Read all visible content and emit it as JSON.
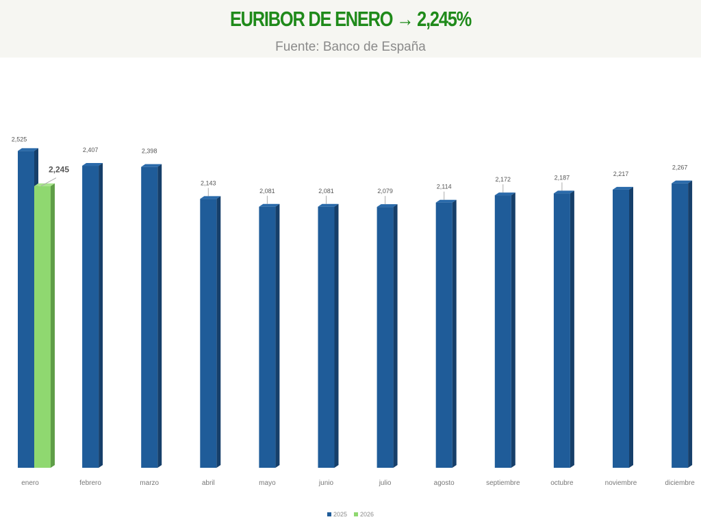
{
  "header": {
    "title": "EURIBOR DE ENERO → 2,245%",
    "subtitle": "Fuente: Banco de España"
  },
  "colors": {
    "series_2025": "#1f5c99",
    "series_2025_side": "#163f6a",
    "series_2025_top": "#2a6aaa",
    "series_2026": "#8fd870",
    "series_2026_side": "#5f9e48",
    "series_2026_top": "#a8e48c"
  },
  "chart_data": {
    "type": "bar",
    "categories": [
      "enero",
      "febrero",
      "marzo",
      "abril",
      "mayo",
      "junio",
      "julio",
      "agosto",
      "septiembre",
      "octubre",
      "noviembre",
      "diciembre"
    ],
    "series": [
      {
        "name": "2025",
        "values": [
          2.525,
          2.407,
          2.398,
          2.143,
          2.081,
          2.081,
          2.079,
          2.114,
          2.172,
          2.187,
          2.217,
          2.267
        ],
        "labels": [
          "2,525",
          "2,407",
          "2,398",
          "2,143",
          "2,081",
          "2,081",
          "2,079",
          "2,114",
          "2,172",
          "2,187",
          "2,217",
          "2,267"
        ]
      },
      {
        "name": "2026",
        "values": [
          2.245,
          null,
          null,
          null,
          null,
          null,
          null,
          null,
          null,
          null,
          null,
          null
        ],
        "labels": [
          "2,245",
          "",
          "",
          "",
          "",
          "",
          "",
          "",
          "",
          "",
          "",
          ""
        ]
      }
    ],
    "legend": [
      "2025",
      "2026"
    ],
    "legend_position": "bottom",
    "grid": false
  }
}
